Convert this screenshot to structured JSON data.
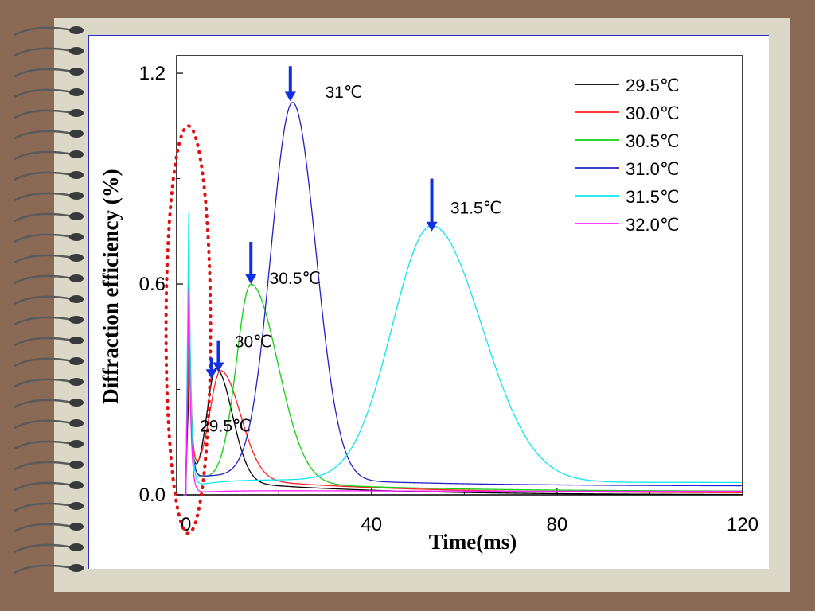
{
  "chart_data": {
    "type": "line",
    "xlabel": "Time(ms)",
    "ylabel": "Diffraction efficiency (%)",
    "xlim": [
      -2,
      120
    ],
    "ylim": [
      0,
      1.25
    ],
    "xticks": [
      0,
      40,
      80,
      120
    ],
    "yticks": [
      0.0,
      0.6,
      1.2
    ],
    "ytick_labels": [
      "0.0",
      "0.6",
      "1.2"
    ],
    "xtick_labels": [
      "0",
      "40",
      "80",
      "120"
    ],
    "legend_position": "top-right",
    "series": [
      {
        "name": "29.5℃",
        "color": "#000000",
        "peak_time": 6.5,
        "peak_value": 0.35,
        "rise": 2.5,
        "fall": 4.5,
        "base": 0.0,
        "spike_time": 0.8,
        "spike_value": 0.38,
        "trough_value": 0.05
      },
      {
        "name": "30.0℃",
        "color": "#ff2020",
        "peak_time": 7.5,
        "peak_value": 0.34,
        "rise": 3.0,
        "fall": 5.5,
        "base": 0.005,
        "spike_time": 0.8,
        "spike_value": 0.5,
        "trough_value": 0.06
      },
      {
        "name": "30.5℃",
        "color": "#10d010",
        "peak_time": 14.0,
        "peak_value": 0.59,
        "rise": 4.0,
        "fall": 7.5,
        "base": 0.01,
        "spike_time": 0.7,
        "spike_value": 0.6,
        "trough_value": 0.05
      },
      {
        "name": "31.0℃",
        "color": "#2020c8",
        "peak_time": 23.0,
        "peak_value": 1.1,
        "rise": 6.0,
        "fall": 6.5,
        "base": 0.025,
        "spike_time": 0.6,
        "spike_value": 0.6,
        "trough_value": 0.05
      },
      {
        "name": "31.5℃",
        "color": "#10e8f0",
        "peak_time": 53.0,
        "peak_value": 0.74,
        "rise": 11.0,
        "fall": 14.0,
        "base": 0.035,
        "spike_time": 0.6,
        "spike_value": 0.8,
        "trough_value": 0.02
      },
      {
        "name": "32.0℃",
        "color": "#ff20ff",
        "peak_time": 0.6,
        "peak_value": 0.0,
        "rise": 1.0,
        "fall": 1.0,
        "base": 0.01,
        "spike_time": 0.6,
        "spike_value": 0.58,
        "trough_value": 0.005
      }
    ],
    "annotations": [
      {
        "text": "31℃",
        "arrow_x": 22.5,
        "arrow_y_top": 1.22,
        "arrow_y_tip": 1.12,
        "label_x": 30,
        "label_y": 1.13
      },
      {
        "text": "31.5℃",
        "arrow_x": 53.0,
        "arrow_y_top": 0.9,
        "arrow_y_tip": 0.75,
        "label_x": 57,
        "label_y": 0.8
      },
      {
        "text": "30.5℃",
        "arrow_x": 14.0,
        "arrow_y_top": 0.72,
        "arrow_y_tip": 0.6,
        "label_x": 18,
        "label_y": 0.6
      },
      {
        "text": "30℃",
        "arrow_x": 7.0,
        "arrow_y_top": 0.44,
        "arrow_y_tip": 0.35,
        "label_x": 10.5,
        "label_y": 0.42
      },
      {
        "text": "29.5℃",
        "arrow_x": 5.5,
        "arrow_y_top": 0.39,
        "arrow_y_tip": 0.33,
        "label_x": 3,
        "label_y": 0.18
      }
    ],
    "highlight": {
      "shape": "ellipse",
      "color": "#e01010",
      "style": "dotted",
      "x_center": 0.5,
      "y_center": 0.47,
      "x_radius": 4.8,
      "y_radius": 0.58
    },
    "grid": false
  }
}
